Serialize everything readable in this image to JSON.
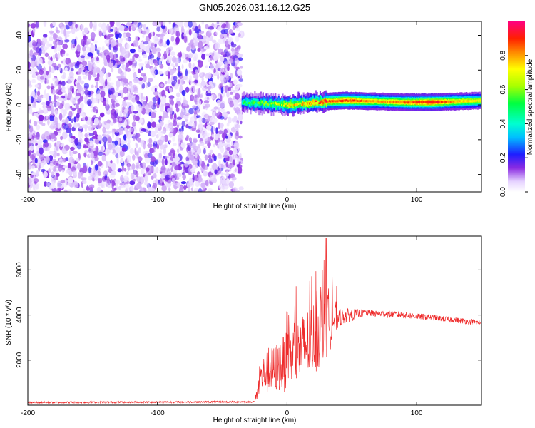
{
  "title": "GN05.2026.031.16.12.G25",
  "chart_data": [
    {
      "type": "heatmap",
      "xlabel": "Height of straight line (km)",
      "ylabel": "Frequency (Hz)",
      "xlim": [
        -200,
        150
      ],
      "ylim": [
        -50,
        48
      ],
      "xticks": [
        -200,
        -100,
        0,
        100
      ],
      "yticks": [
        -40,
        -20,
        0,
        20,
        40
      ],
      "noise_region": {
        "x_start": -200,
        "x_end": -35,
        "description_values": "scattered low amplitude (0.05-0.25)"
      },
      "signal_band": [
        {
          "x": -35,
          "freq": 1.5,
          "amplitude": 0.45
        },
        {
          "x": -20,
          "freq": 1.0,
          "amplitude": 0.55
        },
        {
          "x": -10,
          "freq": 0.5,
          "amplitude": 0.6
        },
        {
          "x": 0,
          "freq": 0.0,
          "amplitude": 0.7
        },
        {
          "x": 15,
          "freq": 1.0,
          "amplitude": 0.75
        },
        {
          "x": 30,
          "freq": 2.0,
          "amplitude": 0.85
        },
        {
          "x": 45,
          "freq": 2.5,
          "amplitude": 0.9
        },
        {
          "x": 70,
          "freq": 2.0,
          "amplitude": 0.8
        },
        {
          "x": 90,
          "freq": 1.5,
          "amplitude": 0.85
        },
        {
          "x": 110,
          "freq": 1.5,
          "amplitude": 0.95
        },
        {
          "x": 130,
          "freq": 2.0,
          "amplitude": 0.8
        },
        {
          "x": 150,
          "freq": 2.5,
          "amplitude": 0.7
        }
      ],
      "colorbar": {
        "label": "Normalized spectral amplitude",
        "range": [
          0,
          1
        ],
        "ticks": [
          0.0,
          0.2,
          0.4,
          0.6,
          0.8
        ]
      }
    },
    {
      "type": "line",
      "xlabel": "Height of straight line (km)",
      "ylabel": "SNR (10 * v/v)",
      "xlim": [
        -200,
        150
      ],
      "ylim": [
        0,
        7500
      ],
      "xticks": [
        -200,
        -100,
        0,
        100
      ],
      "yticks": [
        2000,
        4000,
        6000
      ],
      "color": "#ee2a2a",
      "series_profile": [
        {
          "x": -200,
          "mean": 120,
          "spread": 80
        },
        {
          "x": -25,
          "mean": 150,
          "spread": 80
        },
        {
          "x": -20,
          "mean": 1200,
          "spread": 1500
        },
        {
          "x": 0,
          "mean": 1800,
          "spread": 2400
        },
        {
          "x": 20,
          "mean": 2800,
          "spread": 3000
        },
        {
          "x": 30,
          "mean": 3500,
          "spread": 3200
        },
        {
          "x": 40,
          "mean": 3900,
          "spread": 800
        },
        {
          "x": 60,
          "mean": 4100,
          "spread": 300
        },
        {
          "x": 90,
          "mean": 4000,
          "spread": 300
        },
        {
          "x": 110,
          "mean": 3900,
          "spread": 250
        },
        {
          "x": 150,
          "mean": 3650,
          "spread": 250
        }
      ]
    }
  ]
}
